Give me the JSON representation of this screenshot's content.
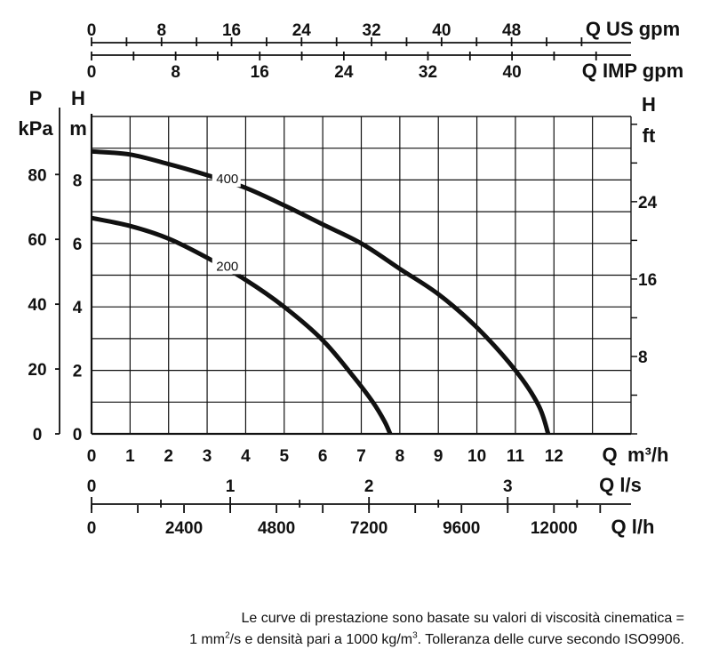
{
  "chart_data": {
    "type": "line",
    "title": "",
    "x": {
      "label": "Q",
      "unit": "m³/h",
      "range": [
        0,
        14
      ],
      "ticks": [
        0,
        1,
        2,
        3,
        4,
        5,
        6,
        7,
        8,
        9,
        10,
        11,
        12
      ]
    },
    "y": {
      "label": "H",
      "unit": "m",
      "range": [
        0,
        10
      ],
      "ticks": [
        0,
        2,
        4,
        6,
        8
      ]
    },
    "pressure_axis": {
      "label": "P",
      "unit": "kPa",
      "ticks": [
        0,
        20,
        40,
        60,
        80
      ]
    },
    "feet_axis": {
      "label": "H",
      "unit": "ft",
      "ticks": [
        8,
        16,
        24
      ]
    },
    "flow_us_axis": {
      "label": "Q US gpm",
      "ticks": [
        0,
        8,
        16,
        24,
        32,
        40,
        48
      ]
    },
    "flow_imp_axis": {
      "label": "Q IMP gpm",
      "ticks": [
        0,
        8,
        16,
        24,
        32,
        40
      ]
    },
    "flow_ls_axis": {
      "label": "Q l/s",
      "ticks": [
        0,
        1,
        2,
        3
      ]
    },
    "flow_lh_axis": {
      "label": "Q l/h",
      "ticks": [
        0,
        2400,
        4800,
        7200,
        9600,
        12000
      ]
    },
    "grid": true,
    "series": [
      {
        "name": "400",
        "x": [
          0,
          1,
          2,
          3,
          4,
          5,
          6,
          7,
          8,
          9,
          10,
          11,
          11.6,
          11.85
        ],
        "y": [
          8.9,
          8.8,
          8.5,
          8.15,
          7.75,
          7.2,
          6.6,
          6.0,
          5.2,
          4.4,
          3.35,
          2.0,
          0.9,
          0
        ]
      },
      {
        "name": "200",
        "x": [
          0,
          1,
          2,
          3,
          4,
          5,
          6,
          6.8,
          7.3,
          7.6,
          7.75
        ],
        "y": [
          6.8,
          6.55,
          6.15,
          5.55,
          4.85,
          4.0,
          2.95,
          1.8,
          1.0,
          0.4,
          0
        ]
      }
    ]
  },
  "footnote": {
    "line1": "Le curve di prestazione sono basate su valori di viscosità cinematica =",
    "line2_a": "1 mm",
    "line2_sup1": "2",
    "line2_b": "/s e densità pari a 1000 kg/m",
    "line2_sup2": "3",
    "line2_c": ". Tolleranza delle curve secondo ISO9906."
  }
}
